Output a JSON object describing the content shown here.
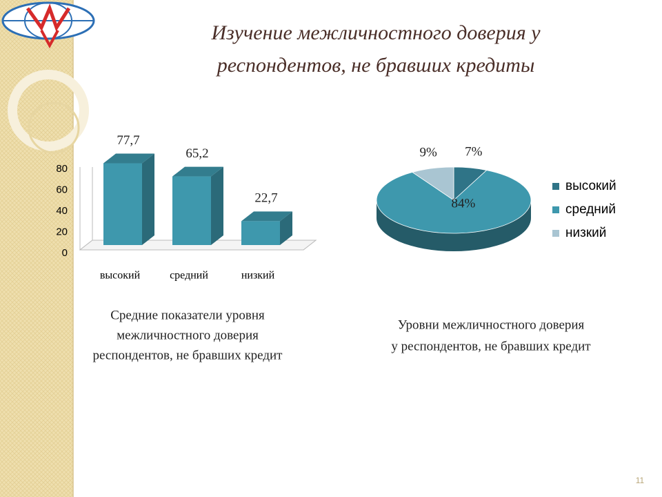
{
  "title": [
    "Изучение межличностного доверия  у",
    "респондентов,  не бравших кредиты"
  ],
  "page_number": "11",
  "chart_data": [
    {
      "type": "bar",
      "categories": [
        "высокий",
        "средний",
        "низкий"
      ],
      "values": [
        77.7,
        65.2,
        22.7
      ],
      "value_labels": [
        "77,7",
        "65,2",
        "22,7"
      ],
      "color": "#3e98ad",
      "ylim": [
        0,
        80
      ],
      "yticks": [
        0,
        20,
        40,
        60,
        80
      ],
      "caption": [
        "Средние показатели уровня",
        "межличностного доверия",
        "респондентов, не бравших кредит"
      ]
    },
    {
      "type": "pie",
      "categories": [
        "высокий",
        "средний",
        "низкий"
      ],
      "values": [
        7,
        84,
        9
      ],
      "value_labels": [
        "7%",
        "84%",
        "9%"
      ],
      "colors": [
        "#2f7487",
        "#3e98ad",
        "#a9c5d2"
      ],
      "legend": "right",
      "caption": [
        "Уровни межличностного доверия",
        "у респондентов, не  бравших кредит"
      ]
    }
  ]
}
